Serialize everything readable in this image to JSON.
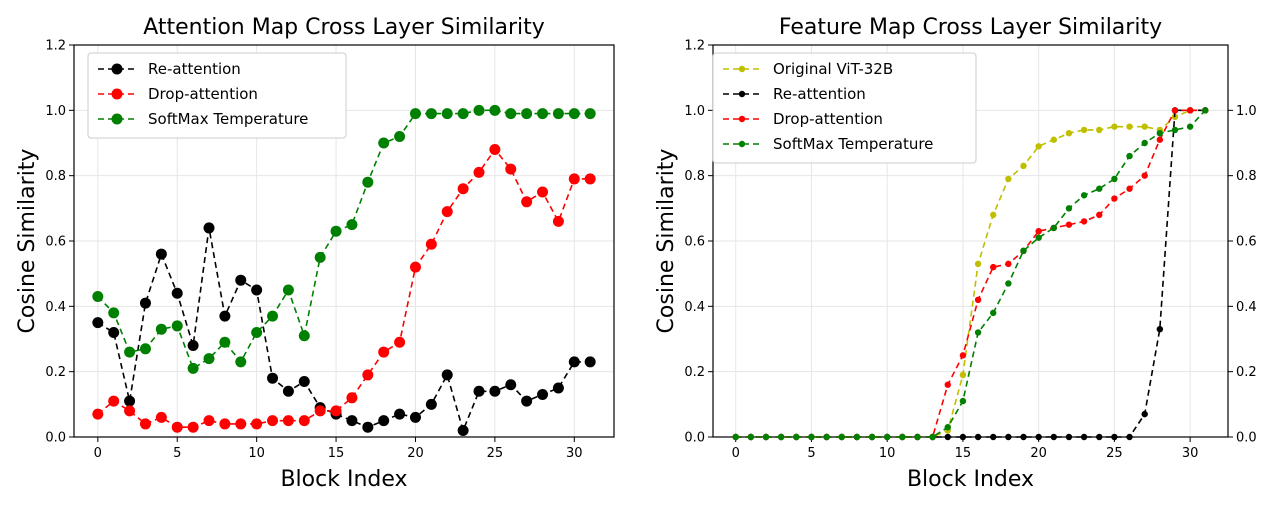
{
  "chart_data": [
    {
      "type": "line",
      "title": "Attention Map Cross Layer Similarity",
      "xlabel": "Block Index",
      "ylabel": "Cosine Similarity",
      "xlim": [
        -1.5,
        32.5
      ],
      "ylim": [
        0,
        1.2
      ],
      "xticks": [
        0,
        5,
        10,
        15,
        20,
        25,
        30
      ],
      "yticks": [
        "0.0",
        "0.2",
        "0.4",
        "0.6",
        "0.8",
        "1.0",
        "1.2"
      ],
      "grid": true,
      "legend_position": "top-left",
      "x": [
        0,
        1,
        2,
        3,
        4,
        5,
        6,
        7,
        8,
        9,
        10,
        11,
        12,
        13,
        14,
        15,
        16,
        17,
        18,
        19,
        20,
        21,
        22,
        23,
        24,
        25,
        26,
        27,
        28,
        29,
        30,
        31
      ],
      "series": [
        {
          "name": "Re-attention",
          "color": "#000000",
          "marker_size": "large",
          "values": [
            0.35,
            0.32,
            0.11,
            0.41,
            0.56,
            0.44,
            0.28,
            0.64,
            0.37,
            0.48,
            0.45,
            0.18,
            0.14,
            0.17,
            0.09,
            0.07,
            0.05,
            0.03,
            0.05,
            0.07,
            0.06,
            0.1,
            0.19,
            0.02,
            0.14,
            0.14,
            0.16,
            0.11,
            0.13,
            0.15,
            0.23,
            0.23
          ]
        },
        {
          "name": "Drop-attention",
          "color": "#ff0000",
          "marker_size": "large",
          "values": [
            0.07,
            0.11,
            0.08,
            0.04,
            0.06,
            0.03,
            0.03,
            0.05,
            0.04,
            0.04,
            0.04,
            0.05,
            0.05,
            0.05,
            0.08,
            0.08,
            0.12,
            0.19,
            0.26,
            0.29,
            0.52,
            0.59,
            0.69,
            0.76,
            0.81,
            0.88,
            0.82,
            0.72,
            0.75,
            0.66,
            0.79,
            0.79
          ]
        },
        {
          "name": "SoftMax Temperature",
          "color": "#008000",
          "marker_size": "large",
          "values": [
            0.43,
            0.38,
            0.26,
            0.27,
            0.33,
            0.34,
            0.21,
            0.24,
            0.29,
            0.23,
            0.32,
            0.37,
            0.45,
            0.31,
            0.55,
            0.63,
            0.65,
            0.78,
            0.9,
            0.92,
            0.99,
            0.99,
            0.99,
            0.99,
            1.0,
            1.0,
            0.99,
            0.99,
            0.99,
            0.99,
            0.99,
            0.99
          ]
        }
      ]
    },
    {
      "type": "line",
      "title": "Feature Map Cross Layer Similarity",
      "xlabel": "Block Index",
      "ylabel": "Cosine Similarity",
      "xlim": [
        -1.5,
        32.5
      ],
      "ylim": [
        0,
        1.2
      ],
      "y2lim": [
        0,
        1.0
      ],
      "xticks": [
        0,
        5,
        10,
        15,
        20,
        25,
        30
      ],
      "yticks": [
        "0.0",
        "0.2",
        "0.4",
        "0.6",
        "0.8",
        "1.0",
        "1.2"
      ],
      "y2ticks": [
        "0.0",
        "0.2",
        "0.4",
        "0.6",
        "0.8",
        "1.0"
      ],
      "grid": true,
      "legend_position": "top-left",
      "x": [
        0,
        1,
        2,
        3,
        4,
        5,
        6,
        7,
        8,
        9,
        10,
        11,
        12,
        13,
        14,
        15,
        16,
        17,
        18,
        19,
        20,
        21,
        22,
        23,
        24,
        25,
        26,
        27,
        28,
        29,
        30,
        31
      ],
      "series": [
        {
          "name": "Original ViT-32B",
          "color": "#bfbf00",
          "marker_size": "small",
          "values": [
            0,
            0,
            0,
            0,
            0,
            0,
            0,
            0,
            0,
            0,
            0,
            0,
            0,
            0,
            0.02,
            0.19,
            0.53,
            0.68,
            0.79,
            0.83,
            0.89,
            0.91,
            0.93,
            0.94,
            0.94,
            0.95,
            0.95,
            0.95,
            0.94,
            0.98,
            1.0,
            1.0
          ]
        },
        {
          "name": "Re-attention",
          "color": "#000000",
          "marker_size": "small",
          "values": [
            0,
            0,
            0,
            0,
            0,
            0,
            0,
            0,
            0,
            0,
            0,
            0,
            0,
            0,
            0,
            0,
            0,
            0,
            0,
            0,
            0,
            0,
            0,
            0,
            0,
            0,
            0,
            0.07,
            0.33,
            1.0,
            1.0,
            1.0
          ]
        },
        {
          "name": "Drop-attention",
          "color": "#ff0000",
          "marker_size": "small",
          "values": [
            0,
            0,
            0,
            0,
            0,
            0,
            0,
            0,
            0,
            0,
            0,
            0,
            0,
            0,
            0.16,
            0.25,
            0.42,
            0.52,
            0.53,
            0.57,
            0.63,
            0.64,
            0.65,
            0.66,
            0.68,
            0.73,
            0.76,
            0.8,
            0.91,
            1.0,
            1.0,
            1.0
          ]
        },
        {
          "name": "SoftMax Temperature",
          "color": "#008000",
          "marker_size": "small",
          "values": [
            0,
            0,
            0,
            0,
            0,
            0,
            0,
            0,
            0,
            0,
            0,
            0,
            0,
            0,
            0.03,
            0.11,
            0.32,
            0.38,
            0.47,
            0.57,
            0.61,
            0.64,
            0.7,
            0.74,
            0.76,
            0.79,
            0.86,
            0.9,
            0.93,
            0.94,
            0.95,
            1.0
          ]
        }
      ]
    }
  ]
}
